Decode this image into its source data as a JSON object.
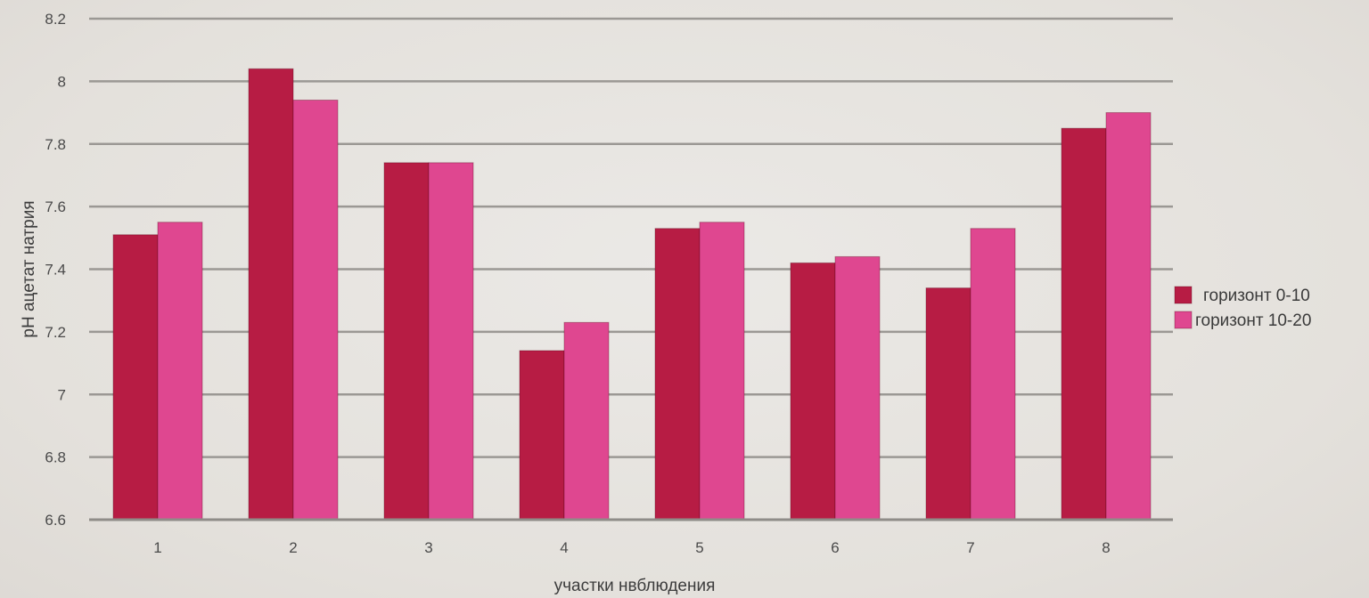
{
  "chart_data": {
    "type": "bar",
    "title": "",
    "xlabel": "участки нвблюдения",
    "ylabel": "pH ацетат натрия",
    "categories": [
      "1",
      "2",
      "3",
      "4",
      "5",
      "6",
      "7",
      "8"
    ],
    "series": [
      {
        "name": "горизонт 0-10",
        "color": "#b71c44",
        "values": [
          7.51,
          8.04,
          7.74,
          7.14,
          7.53,
          7.42,
          7.34,
          7.85
        ]
      },
      {
        "name": "горизонт 10-20",
        "color": "#df4790",
        "values": [
          7.55,
          7.94,
          7.74,
          7.23,
          7.55,
          7.44,
          7.53,
          7.9
        ]
      }
    ],
    "yticks": [
      "6.6",
      "6.8",
      "7",
      "7.2",
      "7.4",
      "7.6",
      "7.8",
      "8",
      "8.2"
    ],
    "ylim": [
      6.6,
      8.2
    ],
    "grid": true,
    "legend_position": "right"
  }
}
